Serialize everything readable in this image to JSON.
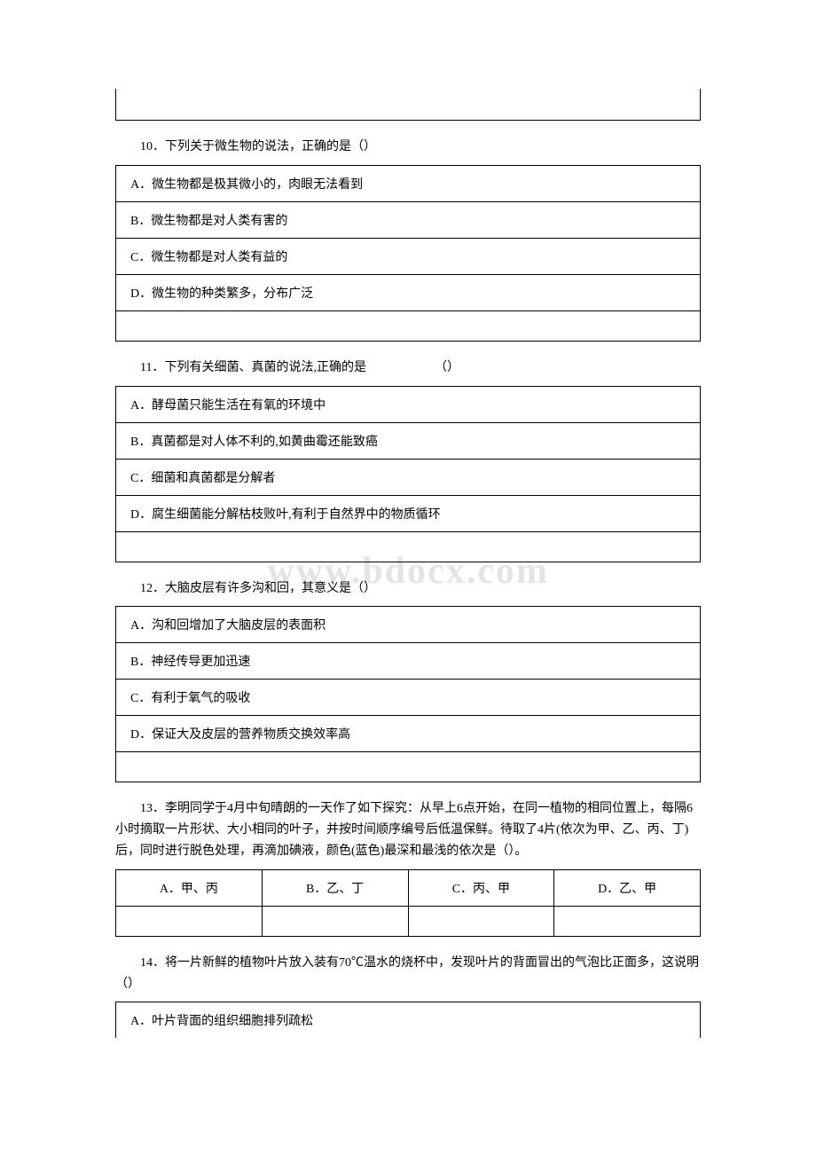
{
  "watermark": "www.bdocx.com",
  "q10": {
    "question": "10．下列关于微生物的说法，正确的是（）",
    "options": {
      "A": "A．微生物都是极其微小的，肉眼无法看到",
      "B": "B．微生物都是对人类有害的",
      "C": "C．微生物都是对人类有益的",
      "D": "D．微生物的种类繁多，分布广泛"
    }
  },
  "q11": {
    "question": "11．下列有关细菌、真菌的说法,正确的是　　　　　　（）",
    "options": {
      "A": "A．酵母菌只能生活在有氧的环境中",
      "B": "B．真菌都是对人体不利的,如黄曲霉还能致癌",
      "C": "C．细菌和真菌都是分解者",
      "D": "D．腐生细菌能分解枯枝败叶,有利于自然界中的物质循环"
    }
  },
  "q12": {
    "question": "12．大脑皮层有许多沟和回，其意义是（）",
    "options": {
      "A": "A．沟和回增加了大脑皮层的表面积",
      "B": "B．神经传导更加迅速",
      "C": "C．有利于氧气的吸收",
      "D": "D．保证大及皮层的营养物质交换效率高"
    }
  },
  "q13": {
    "question": "13．李明同学于4月中旬晴朗的一天作了如下探究：从早上6点开始，在同一植物的相同位置上，每隔6小时摘取一片形状、大小相同的叶子，并按时间顺序编号后低温保鲜。待取了4片(依次为甲、乙、丙、丁)后，同时进行脱色处理，再滴加碘液，颜色(蓝色)最深和最浅的依次是（）。",
    "options": {
      "A": "A．甲、丙",
      "B": "B．乙、丁",
      "C": "C．丙、甲",
      "D": "D．乙、甲"
    }
  },
  "q14": {
    "question": "14．将一片新鲜的植物叶片放入装有70℃温水的烧杯中，发现叶片的背面冒出的气泡比正面多，这说明（）",
    "options": {
      "A": "A．叶片背面的组织细胞排列疏松"
    }
  },
  "colors": {
    "text": "#000000",
    "border": "#000000",
    "background": "#ffffff",
    "watermark": "#e4e4e4"
  },
  "typography": {
    "body_fontsize": 14,
    "watermark_fontsize": 42,
    "font_family": "SimSun"
  }
}
